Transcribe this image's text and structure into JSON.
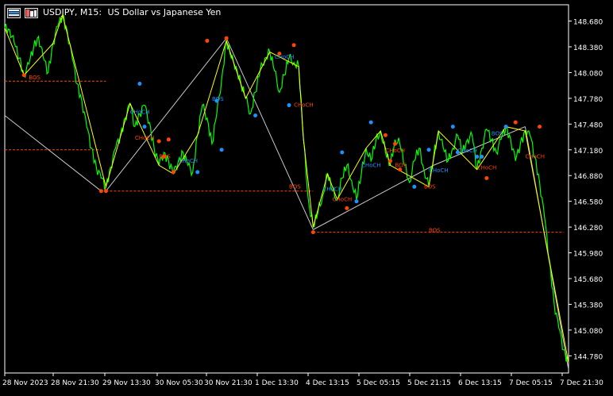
{
  "header": {
    "symbol": "USDJPY, M15:",
    "description": "US Dollar vs Japanese Yen"
  },
  "colors": {
    "background": "#000000",
    "price_line": "#00ff00",
    "zigzag": "#ffff00",
    "swing_line": "#c8c8c8",
    "bull_marker": "#1e90ff",
    "bear_marker": "#ff4500",
    "level_line": "#ff4500",
    "axis": "#ffffff"
  },
  "chart_data": {
    "type": "line",
    "title": "USDJPY, M15: US Dollar vs Japanese Yen",
    "ylim": [
      144.58,
      148.87
    ],
    "y_ticks": [
      "148.680",
      "148.380",
      "148.080",
      "147.780",
      "147.480",
      "147.180",
      "146.880",
      "146.580",
      "146.280",
      "145.980",
      "145.680",
      "145.380",
      "145.080",
      "144.780"
    ],
    "x_ticks": [
      "28 Nov 2023",
      "28 Nov 21:30",
      "29 Nov 13:30",
      "30 Nov 05:30",
      "30 Nov 21:30",
      "1 Dec 13:30",
      "4 Dec 13:15",
      "5 Dec 05:15",
      "5 Dec 21:15",
      "6 Dec 13:15",
      "7 Dec 05:15",
      "7 Dec 21:30"
    ],
    "price_series_approx": [
      [
        0,
        148.6
      ],
      [
        2,
        148.58
      ],
      [
        4,
        148.42
      ],
      [
        6,
        148.25
      ],
      [
        8,
        148.05
      ],
      [
        10,
        148.18
      ],
      [
        12,
        148.38
      ],
      [
        14,
        148.5
      ],
      [
        16,
        148.25
      ],
      [
        18,
        148.08
      ],
      [
        20,
        148.42
      ],
      [
        22,
        148.62
      ],
      [
        24,
        148.75
      ],
      [
        26,
        148.55
      ],
      [
        28,
        148.25
      ],
      [
        30,
        147.95
      ],
      [
        32,
        147.75
      ],
      [
        34,
        147.45
      ],
      [
        36,
        147.2
      ],
      [
        38,
        146.98
      ],
      [
        40,
        146.85
      ],
      [
        42,
        146.75
      ],
      [
        44,
        146.98
      ],
      [
        46,
        147.2
      ],
      [
        48,
        147.35
      ],
      [
        50,
        147.55
      ],
      [
        52,
        147.72
      ],
      [
        54,
        147.45
      ],
      [
        56,
        147.6
      ],
      [
        58,
        147.7
      ],
      [
        60,
        147.5
      ],
      [
        62,
        147.2
      ],
      [
        64,
        147.0
      ],
      [
        66,
        147.15
      ],
      [
        68,
        147.05
      ],
      [
        70,
        146.9
      ],
      [
        72,
        147.05
      ],
      [
        74,
        147.15
      ],
      [
        76,
        147.0
      ],
      [
        78,
        146.92
      ],
      [
        80,
        147.35
      ],
      [
        82,
        147.7
      ],
      [
        84,
        147.55
      ],
      [
        86,
        147.25
      ],
      [
        88,
        147.6
      ],
      [
        90,
        148.0
      ],
      [
        92,
        148.45
      ],
      [
        94,
        148.25
      ],
      [
        96,
        148.15
      ],
      [
        98,
        147.95
      ],
      [
        100,
        147.78
      ],
      [
        102,
        147.6
      ],
      [
        104,
        147.85
      ],
      [
        106,
        148.1
      ],
      [
        108,
        148.25
      ],
      [
        110,
        148.32
      ],
      [
        112,
        148.1
      ],
      [
        114,
        147.85
      ],
      [
        116,
        148.05
      ],
      [
        118,
        148.25
      ],
      [
        120,
        148.2
      ],
      [
        122,
        148.15
      ],
      [
        124,
        147.3
      ],
      [
        126,
        146.6
      ],
      [
        128,
        146.28
      ],
      [
        130,
        146.45
      ],
      [
        132,
        146.65
      ],
      [
        134,
        146.9
      ],
      [
        136,
        146.7
      ],
      [
        138,
        146.6
      ],
      [
        140,
        146.85
      ],
      [
        142,
        147.0
      ],
      [
        144,
        146.82
      ],
      [
        146,
        146.6
      ],
      [
        148,
        146.9
      ],
      [
        150,
        147.2
      ],
      [
        152,
        147.05
      ],
      [
        154,
        147.28
      ],
      [
        156,
        147.4
      ],
      [
        158,
        147.15
      ],
      [
        160,
        147.0
      ],
      [
        162,
        147.3
      ],
      [
        164,
        147.25
      ],
      [
        166,
        147.0
      ],
      [
        168,
        146.8
      ],
      [
        170,
        147.05
      ],
      [
        172,
        147.2
      ],
      [
        174,
        146.95
      ],
      [
        176,
        146.75
      ],
      [
        178,
        147.1
      ],
      [
        180,
        147.4
      ],
      [
        182,
        147.2
      ],
      [
        184,
        147.05
      ],
      [
        186,
        147.2
      ],
      [
        188,
        147.35
      ],
      [
        190,
        147.15
      ],
      [
        192,
        147.3
      ],
      [
        194,
        147.35
      ],
      [
        196,
        146.95
      ],
      [
        198,
        147.2
      ],
      [
        200,
        147.42
      ],
      [
        202,
        147.3
      ],
      [
        204,
        147.15
      ],
      [
        206,
        147.3
      ],
      [
        208,
        147.45
      ],
      [
        210,
        147.3
      ],
      [
        212,
        147.05
      ],
      [
        214,
        147.25
      ],
      [
        216,
        147.4
      ],
      [
        218,
        147.35
      ],
      [
        220,
        147.1
      ],
      [
        222,
        146.8
      ],
      [
        224,
        146.4
      ],
      [
        226,
        145.9
      ],
      [
        228,
        145.4
      ],
      [
        230,
        145.1
      ],
      [
        232,
        144.85
      ],
      [
        234,
        144.7
      ]
    ],
    "zigzag_points_approx": [
      [
        0,
        148.6
      ],
      [
        8,
        148.05
      ],
      [
        20,
        148.42
      ],
      [
        24,
        148.75
      ],
      [
        42,
        146.75
      ],
      [
        52,
        147.72
      ],
      [
        64,
        147.0
      ],
      [
        70,
        146.9
      ],
      [
        80,
        147.35
      ],
      [
        92,
        148.45
      ],
      [
        100,
        147.78
      ],
      [
        110,
        148.32
      ],
      [
        122,
        148.15
      ],
      [
        124,
        147.3
      ],
      [
        128,
        146.28
      ],
      [
        134,
        146.9
      ],
      [
        138,
        146.6
      ],
      [
        150,
        147.2
      ],
      [
        156,
        147.4
      ],
      [
        160,
        147.0
      ],
      [
        176,
        146.75
      ],
      [
        180,
        147.4
      ],
      [
        196,
        146.95
      ],
      [
        208,
        147.45
      ],
      [
        216,
        147.4
      ],
      [
        226,
        145.9
      ],
      [
        234,
        144.7
      ]
    ],
    "swing_lines_approx": [
      [
        [
          0,
          147.58
        ],
        [
          40,
          146.7
        ]
      ],
      [
        [
          42,
          146.7
        ],
        [
          92,
          148.48
        ]
      ],
      [
        [
          92,
          148.48
        ],
        [
          128,
          146.25
        ]
      ],
      [
        [
          128,
          146.25
        ],
        [
          178,
          147.0
        ]
      ],
      [
        [
          178,
          147.0
        ],
        [
          216,
          147.45
        ]
      ],
      [
        [
          216,
          147.45
        ],
        [
          234,
          144.62
        ]
      ]
    ],
    "horizontal_levels": [
      {
        "label": "BOS",
        "y": 147.98
      },
      {
        "label": "",
        "y": 147.18
      },
      {
        "label": "BOS",
        "y": 146.7
      },
      {
        "label": "BOS",
        "y": 146.22
      }
    ],
    "annotations": [
      {
        "text": "BOS",
        "x": 10,
        "y": 148.0,
        "color": "#ff4500"
      },
      {
        "text": "CHoCH",
        "x": 52,
        "y": 147.6,
        "color": "#1e90ff"
      },
      {
        "text": "CHoCH",
        "x": 54,
        "y": 147.3,
        "color": "#ff4500"
      },
      {
        "text": "BOS",
        "x": 64,
        "y": 147.08,
        "color": "#ff4500"
      },
      {
        "text": "CHoCH",
        "x": 72,
        "y": 147.03,
        "color": "#1e90ff"
      },
      {
        "text": "BOS",
        "x": 86,
        "y": 147.75,
        "color": "#1e90ff"
      },
      {
        "text": "CHoCH",
        "x": 112,
        "y": 148.24,
        "color": "#1e90ff"
      },
      {
        "text": "CHoCH",
        "x": 120,
        "y": 147.68,
        "color": "#ff4500"
      },
      {
        "text": "BOS",
        "x": 118,
        "y": 146.73,
        "color": "#ff4500"
      },
      {
        "text": "CHoCH",
        "x": 132,
        "y": 146.7,
        "color": "#1e90ff"
      },
      {
        "text": "CHoCH",
        "x": 136,
        "y": 146.58,
        "color": "#ff4500"
      },
      {
        "text": "CHoCH",
        "x": 148,
        "y": 146.98,
        "color": "#1e90ff"
      },
      {
        "text": "CHoCH",
        "x": 158,
        "y": 147.15,
        "color": "#ff4500"
      },
      {
        "text": "BOS",
        "x": 162,
        "y": 146.98,
        "color": "#ff4500"
      },
      {
        "text": "BOS",
        "x": 176,
        "y": 146.22,
        "color": "#ff4500"
      },
      {
        "text": "BOS",
        "x": 174,
        "y": 146.73,
        "color": "#ff4500"
      },
      {
        "text": "CHoCH",
        "x": 176,
        "y": 146.92,
        "color": "#1e90ff"
      },
      {
        "text": "CHoCH",
        "x": 188,
        "y": 147.15,
        "color": "#1e90ff"
      },
      {
        "text": "CHoCH",
        "x": 196,
        "y": 146.95,
        "color": "#ff4500"
      },
      {
        "text": "BOS",
        "x": 202,
        "y": 147.35,
        "color": "#1e90ff"
      },
      {
        "text": "CHoCH",
        "x": 216,
        "y": 147.08,
        "color": "#ff4500"
      }
    ],
    "swing_markers": [
      {
        "x": 8,
        "y": 148.05,
        "side": "low"
      },
      {
        "x": 40,
        "y": 146.7,
        "side": "low"
      },
      {
        "x": 42,
        "y": 146.7,
        "side": "low"
      },
      {
        "x": 56,
        "y": 147.95,
        "side": "high"
      },
      {
        "x": 58,
        "y": 147.45,
        "side": "high"
      },
      {
        "x": 66,
        "y": 147.1,
        "side": "low"
      },
      {
        "x": 64,
        "y": 147.28,
        "side": "low"
      },
      {
        "x": 68,
        "y": 147.3,
        "side": "low"
      },
      {
        "x": 70,
        "y": 146.92,
        "side": "low"
      },
      {
        "x": 80,
        "y": 146.92,
        "side": "high"
      },
      {
        "x": 84,
        "y": 148.45,
        "side": "low"
      },
      {
        "x": 88,
        "y": 147.75,
        "side": "high"
      },
      {
        "x": 90,
        "y": 147.18,
        "side": "high"
      },
      {
        "x": 92,
        "y": 148.48,
        "side": "low"
      },
      {
        "x": 104,
        "y": 147.58,
        "side": "high"
      },
      {
        "x": 114,
        "y": 148.3,
        "side": "low"
      },
      {
        "x": 120,
        "y": 148.4,
        "side": "low"
      },
      {
        "x": 118,
        "y": 147.7,
        "side": "high"
      },
      {
        "x": 128,
        "y": 146.22,
        "side": "low"
      },
      {
        "x": 140,
        "y": 147.15,
        "side": "high"
      },
      {
        "x": 142,
        "y": 146.5,
        "side": "low"
      },
      {
        "x": 146,
        "y": 146.58,
        "side": "high"
      },
      {
        "x": 152,
        "y": 147.5,
        "side": "high"
      },
      {
        "x": 158,
        "y": 147.35,
        "side": "low"
      },
      {
        "x": 160,
        "y": 147.05,
        "side": "low"
      },
      {
        "x": 162,
        "y": 147.25,
        "side": "low"
      },
      {
        "x": 164,
        "y": 146.95,
        "side": "low"
      },
      {
        "x": 170,
        "y": 146.75,
        "side": "high"
      },
      {
        "x": 176,
        "y": 147.18,
        "side": "high"
      },
      {
        "x": 186,
        "y": 147.45,
        "side": "high"
      },
      {
        "x": 188,
        "y": 147.15,
        "side": "high"
      },
      {
        "x": 196,
        "y": 147.1,
        "side": "high"
      },
      {
        "x": 198,
        "y": 147.1,
        "side": "high"
      },
      {
        "x": 200,
        "y": 146.85,
        "side": "low"
      },
      {
        "x": 208,
        "y": 147.45,
        "side": "high"
      },
      {
        "x": 212,
        "y": 147.5,
        "side": "low"
      },
      {
        "x": 222,
        "y": 147.45,
        "side": "low"
      }
    ]
  }
}
